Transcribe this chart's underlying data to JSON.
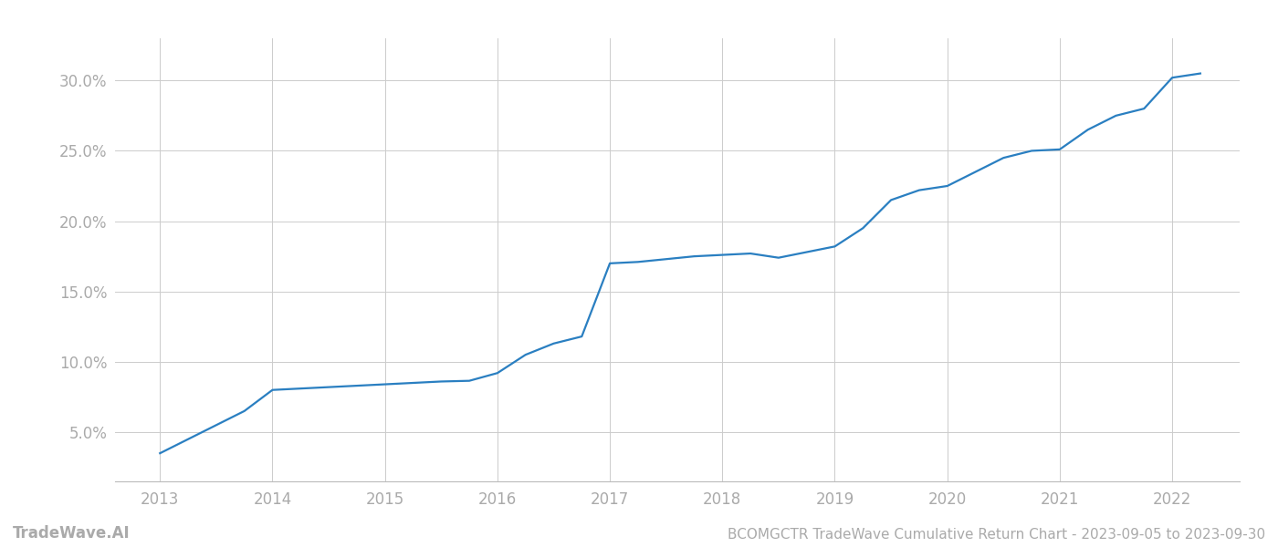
{
  "title": "BCOMGCTR TradeWave Cumulative Return Chart - 2023-09-05 to 2023-09-30",
  "watermark": "TradeWave.AI",
  "line_color": "#2a7fc1",
  "background_color": "#ffffff",
  "grid_color": "#cccccc",
  "x_values": [
    2013.0,
    2013.25,
    2013.75,
    2014.0,
    2014.25,
    2014.5,
    2014.75,
    2015.0,
    2015.25,
    2015.5,
    2015.75,
    2016.0,
    2016.25,
    2016.5,
    2016.75,
    2017.0,
    2017.25,
    2017.5,
    2017.75,
    2018.0,
    2018.25,
    2018.5,
    2018.75,
    2019.0,
    2019.25,
    2019.5,
    2019.75,
    2020.0,
    2020.25,
    2020.5,
    2020.75,
    2021.0,
    2021.25,
    2021.5,
    2021.75,
    2022.0,
    2022.25
  ],
  "y_values": [
    3.5,
    4.5,
    6.5,
    8.0,
    8.1,
    8.2,
    8.3,
    8.4,
    8.5,
    8.6,
    8.65,
    9.2,
    10.5,
    11.3,
    11.8,
    17.0,
    17.1,
    17.3,
    17.5,
    17.6,
    17.7,
    17.4,
    17.8,
    18.2,
    19.5,
    21.5,
    22.2,
    22.5,
    23.5,
    24.5,
    25.0,
    25.1,
    26.5,
    27.5,
    28.0,
    30.2,
    30.5
  ],
  "xlim": [
    2012.6,
    2022.6
  ],
  "ylim": [
    1.5,
    33.0
  ],
  "xticks": [
    2013,
    2014,
    2015,
    2016,
    2017,
    2018,
    2019,
    2020,
    2021,
    2022
  ],
  "yticks": [
    5.0,
    10.0,
    15.0,
    20.0,
    25.0,
    30.0
  ],
  "tick_label_color": "#aaaaaa",
  "tick_label_fontsize": 12,
  "title_fontsize": 11,
  "watermark_fontsize": 12,
  "line_width": 1.6
}
